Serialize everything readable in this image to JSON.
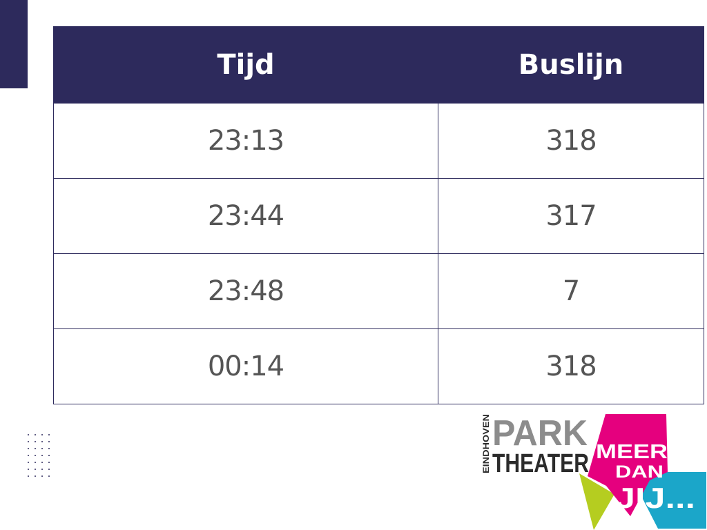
{
  "table": {
    "headers": [
      "Tijd",
      "Buslijn"
    ],
    "rows": [
      [
        "23:13",
        "318"
      ],
      [
        "23:44",
        "317"
      ],
      [
        "23:48",
        "7"
      ],
      [
        "00:14",
        "318"
      ]
    ]
  },
  "logo": {
    "eindhoven": "EINDHOVEN",
    "park": "PARK",
    "theater": "THEATER",
    "meer": "MEER",
    "dan": "DAN",
    "jij": "JIJ..."
  },
  "colors": {
    "navy": "#2d2a5c",
    "magenta": "#e5007e",
    "orange": "#f39200",
    "cyan": "#1ba6c9",
    "lime": "#b5cd20",
    "grey": "#8c8c8c"
  }
}
